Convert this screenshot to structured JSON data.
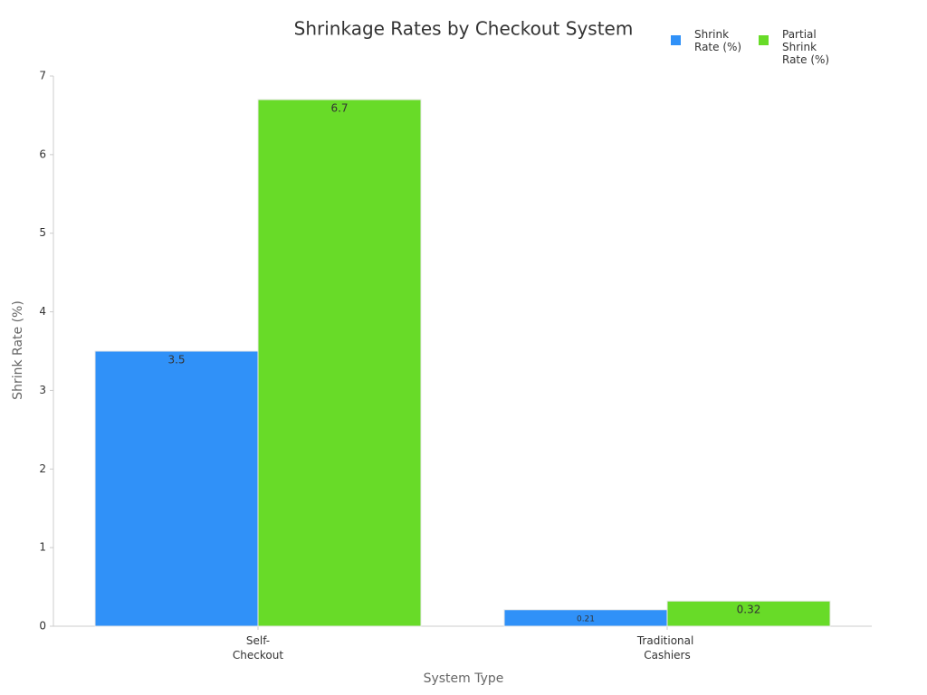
{
  "chart_data": {
    "type": "bar",
    "title": "Shrinkage Rates by Checkout System",
    "x_label": "System Type",
    "y_label": "Shrink Rate (%)",
    "categories": [
      "Self-Checkout",
      "Traditional Cashiers"
    ],
    "series": [
      {
        "name": "Shrink Rate (%)",
        "color": "#3091f8",
        "values": [
          3.5,
          0.21
        ]
      },
      {
        "name": "Partial Shrink Rate (%)",
        "color": "#68db28",
        "values": [
          6.7,
          0.32
        ]
      }
    ],
    "ylim": [
      0,
      7
    ],
    "yticks": [
      0,
      1,
      2,
      3,
      4,
      5,
      6,
      7
    ],
    "legend": "top-right"
  }
}
